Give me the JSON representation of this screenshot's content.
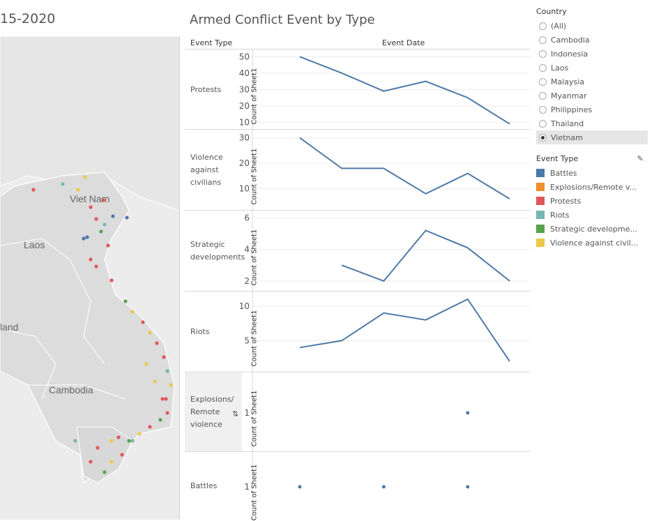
{
  "map": {
    "title": "15-2020",
    "labels": [
      "Viet Nam",
      "Laos",
      "land",
      "Cambodia"
    ]
  },
  "chart": {
    "title": "Armed Conflict Event by Type",
    "col_event_type": "Event Type",
    "col_event_date": "Event Date",
    "axis_label": "Count of Sheet1"
  },
  "filter": {
    "title": "Country",
    "options": [
      "(All)",
      "Cambodia",
      "Indonesia",
      "Laos",
      "Malaysia",
      "Myanmar",
      "Philippines",
      "Thailand",
      "Vietnam"
    ],
    "selected": "Vietnam"
  },
  "legend": {
    "title": "Event Type",
    "items": [
      {
        "label": "Battles",
        "color": "#4e79a7"
      },
      {
        "label": "Explosions/Remote v...",
        "color": "#f28e2b"
      },
      {
        "label": "Protests",
        "color": "#e15759"
      },
      {
        "label": "Riots",
        "color": "#76b7b2"
      },
      {
        "label": "Strategic developme...",
        "color": "#59a14f"
      },
      {
        "label": "Violence against civil...",
        "color": "#edc948"
      }
    ]
  },
  "chart_data": {
    "type": "line",
    "line_color": "#4e79a7",
    "panels": [
      {
        "label": "Protests",
        "ticks": [
          10,
          20,
          30,
          40,
          50
        ],
        "ylim": [
          8,
          51
        ],
        "x": [
          0,
          1,
          2,
          3,
          4,
          5
        ],
        "values": [
          50,
          40,
          29,
          35,
          25,
          9
        ]
      },
      {
        "label": "Violence against civilians",
        "ticks": [
          10,
          20,
          30
        ],
        "ylim": [
          3,
          31
        ],
        "x": [
          0,
          1,
          2,
          3,
          4,
          5
        ],
        "values": [
          30,
          18,
          18,
          8,
          16,
          6
        ]
      },
      {
        "label": "Strategic developments",
        "ticks": [
          2,
          4,
          6
        ],
        "ylim": [
          1.6,
          6.1
        ],
        "x": [
          1,
          2,
          3,
          4,
          5
        ],
        "values": [
          3,
          2,
          5.2,
          4.1,
          2
        ]
      },
      {
        "label": "Riots",
        "ticks": [
          5,
          10
        ],
        "ylim": [
          1,
          11.3
        ],
        "x": [
          0,
          1,
          2,
          3,
          4,
          5
        ],
        "values": [
          4,
          5,
          9,
          8,
          11,
          2
        ]
      },
      {
        "label": "Explosions/ Remote violence",
        "ticks": [
          1
        ],
        "ylim": [
          0,
          2
        ],
        "x": [
          4
        ],
        "values": [
          1
        ],
        "marks": "points"
      },
      {
        "label": "Battles",
        "ticks": [
          1
        ],
        "ylim": [
          0,
          2
        ],
        "x": [
          0,
          2,
          4
        ],
        "values": [
          1,
          1,
          1
        ],
        "marks": "points"
      }
    ]
  }
}
